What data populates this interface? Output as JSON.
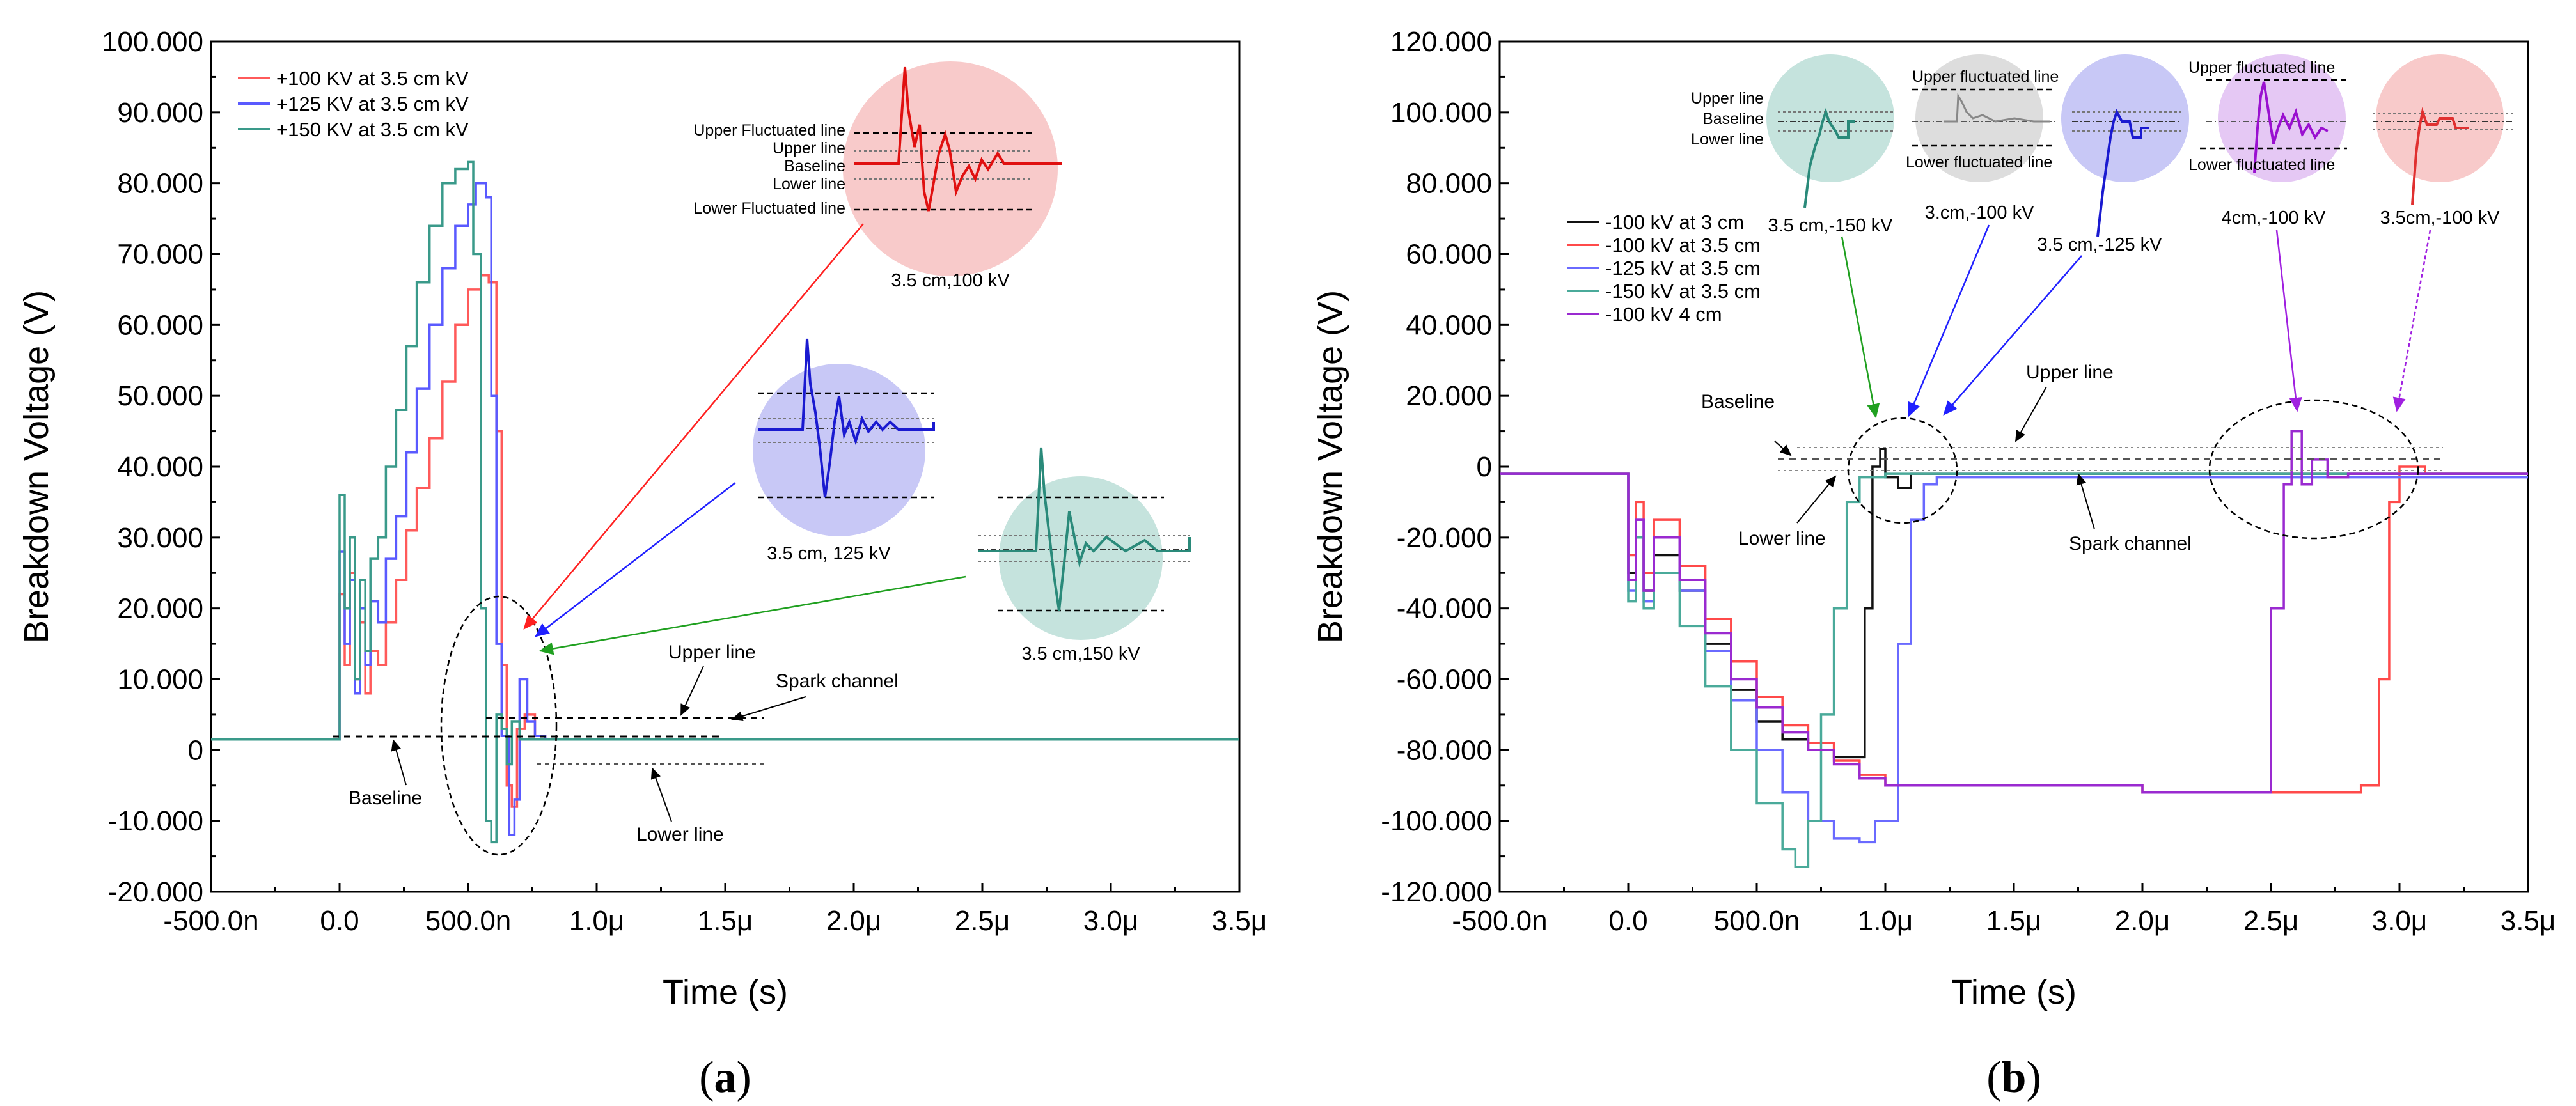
{
  "figure": {
    "panel_a_label": {
      "open": "(",
      "letter": "a",
      "close": ")"
    },
    "panel_b_label": {
      "open": "(",
      "letter": "b",
      "close": ")"
    }
  },
  "chart_data": [
    {
      "id": "a",
      "type": "line",
      "xlabel": "Time (s)",
      "ylabel": "Breakdown Voltage (V)",
      "xlim": [
        -5e-07,
        3.5e-06
      ],
      "ylim": [
        -20,
        100
      ],
      "x_ticks": [
        {
          "value": -5e-07,
          "label": "-500.0n"
        },
        {
          "value": 0,
          "label": "0.0"
        },
        {
          "value": 5e-07,
          "label": "500.0n"
        },
        {
          "value": 1e-06,
          "label": "1.0μ"
        },
        {
          "value": 1.5e-06,
          "label": "1.5μ"
        },
        {
          "value": 2e-06,
          "label": "2.0μ"
        },
        {
          "value": 2.5e-06,
          "label": "2.5μ"
        },
        {
          "value": 3e-06,
          "label": "3.0μ"
        },
        {
          "value": 3.5e-06,
          "label": "3.5μ"
        }
      ],
      "y_ticks": [
        {
          "value": 100,
          "label": "100.000"
        },
        {
          "value": 90,
          "label": "90.000"
        },
        {
          "value": 80,
          "label": "80.000"
        },
        {
          "value": 70,
          "label": "70.000"
        },
        {
          "value": 60,
          "label": "60.000"
        },
        {
          "value": 50,
          "label": "50.000"
        },
        {
          "value": 40,
          "label": "40.000"
        },
        {
          "value": 30,
          "label": "30.000"
        },
        {
          "value": 20,
          "label": "20.000"
        },
        {
          "value": 10,
          "label": "10.000"
        },
        {
          "value": 0,
          "label": "0"
        },
        {
          "value": -10,
          "label": "-10.000"
        },
        {
          "value": -20,
          "label": "-20.000"
        }
      ],
      "legend_position": "top-left",
      "series": [
        {
          "name": "+100 KV at 3.5 cm kV",
          "color": "#ff5a5a",
          "x": [
            -5e-07,
            -1e-08,
            0,
            2e-08,
            4e-08,
            6e-08,
            8e-08,
            1e-07,
            1.2e-07,
            1.5e-07,
            1.8e-07,
            2.2e-07,
            2.6e-07,
            3e-07,
            3.5e-07,
            4e-07,
            4.5e-07,
            5e-07,
            5.5e-07,
            5.8e-07,
            6.1e-07,
            6.3e-07,
            6.5e-07,
            6.7e-07,
            6.9e-07,
            7.2e-07,
            7.6e-07,
            8e-07,
            3.5e-06
          ],
          "values": [
            1.5,
            1.5,
            22,
            12,
            25,
            10,
            18,
            8,
            14,
            12,
            18,
            24,
            31,
            37,
            44,
            52,
            60,
            65,
            67,
            66,
            45,
            12,
            -5,
            -8,
            3,
            5,
            2,
            1.5,
            1.5
          ]
        },
        {
          "name": "+125 KV at 3.5 cm kV",
          "color": "#5a5aff",
          "x": [
            -5e-07,
            -1e-08,
            0,
            2e-08,
            4e-08,
            6e-08,
            8e-08,
            1e-07,
            1.2e-07,
            1.5e-07,
            1.8e-07,
            2.2e-07,
            2.6e-07,
            3e-07,
            3.5e-07,
            4e-07,
            4.5e-07,
            5e-07,
            5.3e-07,
            5.7e-07,
            5.9e-07,
            6.1e-07,
            6.3e-07,
            6.6e-07,
            6.8e-07,
            7e-07,
            7.3e-07,
            7.6e-07,
            8e-07,
            3.5e-06
          ],
          "values": [
            1.5,
            1.5,
            28,
            15,
            24,
            8,
            20,
            12,
            21,
            18,
            27,
            33,
            42,
            51,
            60,
            68,
            74,
            77,
            80,
            78,
            50,
            15,
            2,
            -12,
            -7,
            10,
            4,
            2,
            1.5,
            1.5
          ]
        },
        {
          "name": "+150 KV at 3.5 cm kV",
          "color": "#3a9a8a",
          "x": [
            -5e-07,
            -1e-08,
            0,
            2e-08,
            4e-08,
            6e-08,
            8e-08,
            1e-07,
            1.2e-07,
            1.5e-07,
            1.8e-07,
            2.2e-07,
            2.6e-07,
            3e-07,
            3.5e-07,
            4e-07,
            4.5e-07,
            5e-07,
            5.2e-07,
            5.5e-07,
            5.7e-07,
            5.9e-07,
            6.1e-07,
            6.3e-07,
            6.5e-07,
            6.7e-07,
            7e-07,
            3.5e-06
          ],
          "values": [
            1.5,
            1.5,
            36,
            20,
            30,
            10,
            24,
            14,
            27,
            30,
            40,
            48,
            57,
            66,
            74,
            80,
            82,
            83,
            70,
            20,
            -10,
            -13,
            5,
            3,
            -2,
            4,
            1.5,
            1.5
          ]
        }
      ],
      "annotations": [
        {
          "text": "Upper line"
        },
        {
          "text": "Spark channel"
        },
        {
          "text": "Baseline"
        },
        {
          "text": "Lower line"
        }
      ],
      "insets": [
        {
          "label": "3.5 cm,100 kV",
          "color": "#ff6b6b",
          "fill": "#f8caca",
          "line_labels": [
            "Upper Fluctuated line",
            "Upper line",
            "Baseline",
            "Lower  line",
            "Lower Fluctuated line"
          ]
        },
        {
          "label": "3.5 cm, 125 kV",
          "color": "#1a1ad0",
          "fill": "#c8c8f6",
          "line_labels": []
        },
        {
          "label": "3.5 cm,150 kV",
          "color": "#2a8a7a",
          "fill": "#c5e3dd",
          "line_labels": []
        }
      ]
    },
    {
      "id": "b",
      "type": "line",
      "xlabel": "Time (s)",
      "ylabel": "Breakdown Voltage (V)",
      "xlim": [
        -5e-07,
        3.5e-06
      ],
      "ylim": [
        -120,
        120
      ],
      "x_ticks": [
        {
          "value": -5e-07,
          "label": "-500.0n"
        },
        {
          "value": 0,
          "label": "0.0"
        },
        {
          "value": 5e-07,
          "label": "500.0n"
        },
        {
          "value": 1e-06,
          "label": "1.0μ"
        },
        {
          "value": 1.5e-06,
          "label": "1.5μ"
        },
        {
          "value": 2e-06,
          "label": "2.0μ"
        },
        {
          "value": 2.5e-06,
          "label": "2.5μ"
        },
        {
          "value": 3e-06,
          "label": "3.0μ"
        },
        {
          "value": 3.5e-06,
          "label": "3.5μ"
        }
      ],
      "y_ticks": [
        {
          "value": 120,
          "label": "120.000"
        },
        {
          "value": 100,
          "label": "100.000"
        },
        {
          "value": 80,
          "label": "80.000"
        },
        {
          "value": 60,
          "label": "60.000"
        },
        {
          "value": 40,
          "label": "40.000"
        },
        {
          "value": 20,
          "label": "20.000"
        },
        {
          "value": 0,
          "label": "0"
        },
        {
          "value": -20,
          "label": "-20.000"
        },
        {
          "value": -40,
          "label": "-40.000"
        },
        {
          "value": -60,
          "label": "-60.000"
        },
        {
          "value": -80,
          "label": "-80.000"
        },
        {
          "value": -100,
          "label": "-100.000"
        },
        {
          "value": -120,
          "label": "-120.000"
        }
      ],
      "legend_position": "top-left",
      "series": [
        {
          "name": "-100 kV at 3 cm",
          "color": "#111111",
          "x": [
            -5e-07,
            -1e-08,
            0,
            3e-08,
            6e-08,
            1e-07,
            2e-07,
            3e-07,
            4e-07,
            5e-07,
            6e-07,
            7e-07,
            8e-07,
            8.8e-07,
            9.2e-07,
            9.5e-07,
            9.8e-07,
            1e-06,
            1.05e-06,
            1.1e-06,
            1.2e-06,
            3.5e-06
          ],
          "values": [
            -2,
            -2,
            -30,
            -20,
            -35,
            -25,
            -35,
            -50,
            -63,
            -72,
            -77,
            -80,
            -82,
            -82,
            -40,
            0,
            5,
            -3,
            -6,
            -2,
            -2,
            -2
          ]
        },
        {
          "name": "-100 kV at 3.5 cm",
          "color": "#ff4a4a",
          "x": [
            -5e-07,
            -1e-08,
            0,
            3e-08,
            6e-08,
            1e-07,
            2e-07,
            3e-07,
            4e-07,
            5e-07,
            6e-07,
            7e-07,
            8e-07,
            9e-07,
            1e-06,
            1.5e-06,
            2e-06,
            2.5e-06,
            2.85e-06,
            2.92e-06,
            2.96e-06,
            3e-06,
            3.1e-06,
            3.5e-06
          ],
          "values": [
            -2,
            -2,
            -25,
            -10,
            -30,
            -15,
            -28,
            -43,
            -55,
            -65,
            -73,
            -78,
            -83,
            -87,
            -90,
            -90,
            -92,
            -92,
            -90,
            -60,
            -10,
            0,
            -2,
            -2
          ]
        },
        {
          "name": "-125 kV at 3.5 cm",
          "color": "#6a6aff",
          "x": [
            -5e-07,
            -1e-08,
            0,
            3e-08,
            6e-08,
            1e-07,
            2e-07,
            3e-07,
            4e-07,
            5e-07,
            6e-07,
            7e-07,
            8e-07,
            9e-07,
            9.6e-07,
            1.05e-06,
            1.1e-06,
            1.15e-06,
            1.2e-06,
            3.5e-06
          ],
          "values": [
            -2,
            -2,
            -35,
            -15,
            -38,
            -20,
            -35,
            -52,
            -66,
            -80,
            -92,
            -100,
            -105,
            -106,
            -100,
            -50,
            -15,
            -5,
            -3,
            -3
          ]
        },
        {
          "name": "-150 kV at 3.5 cm",
          "color": "#4aaa9a",
          "x": [
            -5e-07,
            -1e-08,
            0,
            3e-08,
            6e-08,
            1e-07,
            2e-07,
            3e-07,
            4e-07,
            5e-07,
            6e-07,
            6.5e-07,
            7e-07,
            7.5e-07,
            8e-07,
            8.5e-07,
            9e-07,
            1e-06,
            3.5e-06
          ],
          "values": [
            -2,
            -2,
            -38,
            -20,
            -40,
            -30,
            -45,
            -62,
            -80,
            -95,
            -108,
            -113,
            -100,
            -70,
            -40,
            -10,
            -3,
            -2,
            -2
          ]
        },
        {
          "name": "-100 kV 4 cm",
          "color": "#9a2ad0",
          "x": [
            -5e-07,
            -1e-08,
            0,
            3e-08,
            6e-08,
            1e-07,
            2e-07,
            3e-07,
            4e-07,
            5e-07,
            6e-07,
            7e-07,
            8e-07,
            9e-07,
            1e-06,
            1.5e-06,
            2e-06,
            2.45e-06,
            2.5e-06,
            2.55e-06,
            2.58e-06,
            2.62e-06,
            2.66e-06,
            2.72e-06,
            2.8e-06,
            3.5e-06
          ],
          "values": [
            -2,
            -2,
            -32,
            -15,
            -35,
            -20,
            -32,
            -47,
            -60,
            -68,
            -75,
            -80,
            -84,
            -88,
            -90,
            -90,
            -92,
            -92,
            -40,
            -5,
            10,
            -5,
            2,
            -3,
            -2,
            -2
          ]
        }
      ],
      "annotations": [
        {
          "text": "Upper line"
        },
        {
          "text": "Baseline"
        },
        {
          "text": "Lower line"
        },
        {
          "text": "Spark channel"
        }
      ],
      "insets": [
        {
          "label": "3.5 cm,-150 kV",
          "color": "#2a8a7a",
          "fill": "#c5e3dd",
          "line_labels": [
            "Upper line",
            "Baseline",
            "Lower line"
          ]
        },
        {
          "label": "3.cm,-100 kV",
          "color": "#888888",
          "fill": "#dddddd",
          "line_labels": [
            "Upper fluctuated line",
            "Lower fluctuated line"
          ]
        },
        {
          "label": "3.5 cm,-125 kV",
          "color": "#1a1ad0",
          "fill": "#c8c8f6",
          "line_labels": []
        },
        {
          "label": "4cm,-100 kV",
          "color": "#9a10d0",
          "fill": "#e5c8f4",
          "line_labels": [
            "Upper fluctuated line",
            "Lower fluctuated line"
          ]
        },
        {
          "label": "3.5cm,-100 kV",
          "color": "#e03030",
          "fill": "#f8caca",
          "line_labels": []
        }
      ]
    }
  ]
}
